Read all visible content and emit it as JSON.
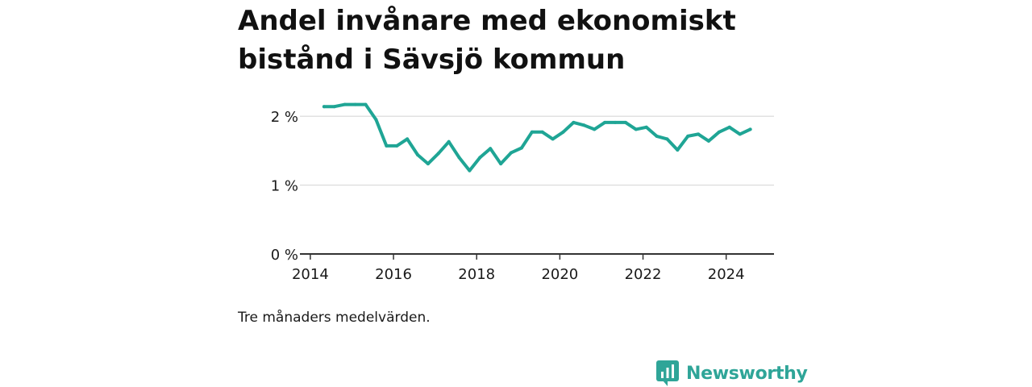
{
  "title": "Andel invånare med ekonomiskt bistånd i Sävsjö kommun",
  "note": "Tre månaders medelvärden.",
  "brand": {
    "name": "Newsworthy",
    "logo_icon": "newsworthy-bar-chart-logo-icon",
    "color": "#2fa598"
  },
  "chart_data": {
    "type": "line",
    "title": "Andel invånare med ekonomiskt bistånd i Sävsjö kommun",
    "xlabel": "",
    "ylabel": "",
    "x_ticks": [
      {
        "value": 2014,
        "label": "2014"
      },
      {
        "value": 2016,
        "label": "2016"
      },
      {
        "value": 2018,
        "label": "2018"
      },
      {
        "value": 2020,
        "label": "2020"
      },
      {
        "value": 2022,
        "label": "2022"
      },
      {
        "value": 2024,
        "label": "2024"
      }
    ],
    "y_ticks": [
      {
        "value": 0,
        "label": "0 %"
      },
      {
        "value": 1,
        "label": "1 %"
      },
      {
        "value": 2,
        "label": "2 %"
      }
    ],
    "xlim": [
      2013.75,
      2025.15
    ],
    "ylim": [
      0,
      2.4
    ],
    "grid": "horizontal",
    "series_color": "#1fa595",
    "series": [
      {
        "x": [
          2014.33,
          2014.58,
          2014.83,
          2015.08,
          2015.33,
          2015.58,
          2015.83,
          2016.08,
          2016.33,
          2016.58,
          2016.83,
          2017.08,
          2017.33,
          2017.58,
          2017.83,
          2018.08,
          2018.33,
          2018.58,
          2018.83,
          2019.08,
          2019.33,
          2019.58,
          2019.83,
          2020.08,
          2020.33,
          2020.58,
          2020.83,
          2021.08,
          2021.33,
          2021.58,
          2021.83,
          2022.08,
          2022.33,
          2022.58,
          2022.83,
          2023.08,
          2023.33,
          2023.58,
          2023.83,
          2024.08,
          2024.33,
          2024.58
        ],
        "values": [
          2.14,
          2.14,
          2.17,
          2.17,
          2.17,
          1.95,
          1.57,
          1.57,
          1.67,
          1.44,
          1.31,
          1.46,
          1.63,
          1.4,
          1.21,
          1.4,
          1.53,
          1.31,
          1.47,
          1.54,
          1.77,
          1.77,
          1.67,
          1.77,
          1.91,
          1.87,
          1.81,
          1.91,
          1.91,
          1.91,
          1.81,
          1.84,
          1.71,
          1.67,
          1.51,
          1.71,
          1.74,
          1.64,
          1.77,
          1.84,
          1.74,
          1.81
        ]
      }
    ]
  }
}
